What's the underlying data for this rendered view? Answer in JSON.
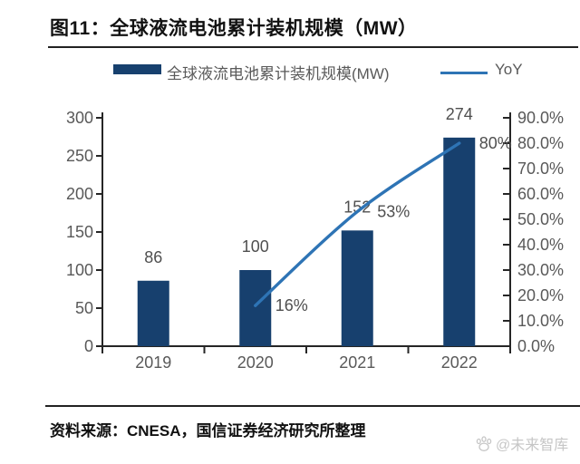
{
  "header": {
    "title": "图11：全球液流电池累计装机规模（MW）"
  },
  "legend": {
    "bar_label": "全球液流电池累计装机规模(MW)",
    "line_label": "YoY"
  },
  "footer": {
    "source": "资料来源：CNESA，国信证券经济研究所整理",
    "watermark": "@未来智库"
  },
  "colors": {
    "bar": "#17406e",
    "line": "#2e74b5",
    "axis": "#262626",
    "tick_label": "#595959",
    "data_label": "#4f4f4f",
    "title_text": "#111111",
    "watermark": "#c6c6c6"
  },
  "chart_data": {
    "type": "combo-bar-line",
    "title": "全球液流电池累计装机规模（MW）",
    "categories": [
      "2019",
      "2020",
      "2021",
      "2022"
    ],
    "series": [
      {
        "name": "全球液流电池累计装机规模(MW)",
        "type": "bar",
        "y_axis": "left",
        "values": [
          86,
          100,
          152,
          274
        ],
        "data_labels": [
          "86",
          "100",
          "152",
          "274"
        ]
      },
      {
        "name": "YoY",
        "type": "line",
        "y_axis": "right",
        "categories": [
          "2020",
          "2021",
          "2022"
        ],
        "values": [
          16,
          53,
          80
        ],
        "data_labels": [
          "16%",
          "53%",
          "80%"
        ]
      }
    ],
    "left_axis": {
      "min": 0,
      "max": 300,
      "step": 50,
      "tick_labels": [
        "0",
        "50",
        "100",
        "150",
        "200",
        "250",
        "300"
      ]
    },
    "right_axis": {
      "min": 0,
      "max": 90,
      "step": 10,
      "tick_labels": [
        "0.0%",
        "10.0%",
        "20.0%",
        "30.0%",
        "40.0%",
        "50.0%",
        "60.0%",
        "70.0%",
        "80.0%",
        "90.0%"
      ]
    },
    "legend_position": "top",
    "grid": false
  }
}
